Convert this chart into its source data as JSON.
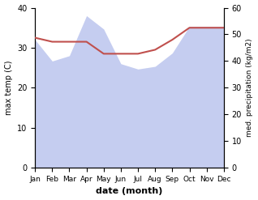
{
  "months": [
    "Jan",
    "Feb",
    "Mar",
    "Apr",
    "May",
    "Jun",
    "Jul",
    "Aug",
    "Sep",
    "Oct",
    "Nov",
    "Dec"
  ],
  "max_temp": [
    32.5,
    31.5,
    31.5,
    31.5,
    28.5,
    28.5,
    28.5,
    29.5,
    32.0,
    35.0,
    35.0,
    35.0
  ],
  "precipitation": [
    48.0,
    40.0,
    42.0,
    57.0,
    52.0,
    39.0,
    37.0,
    38.0,
    43.0,
    53.0,
    53.0,
    53.0
  ],
  "temp_color": "#c0504d",
  "precip_fill_color": "#c5cdf0",
  "temp_ylim": [
    0,
    40
  ],
  "precip_ylim": [
    0,
    60
  ],
  "xlabel": "date (month)",
  "ylabel_left": "max temp (C)",
  "ylabel_right": "med. precipitation (kg/m2)"
}
